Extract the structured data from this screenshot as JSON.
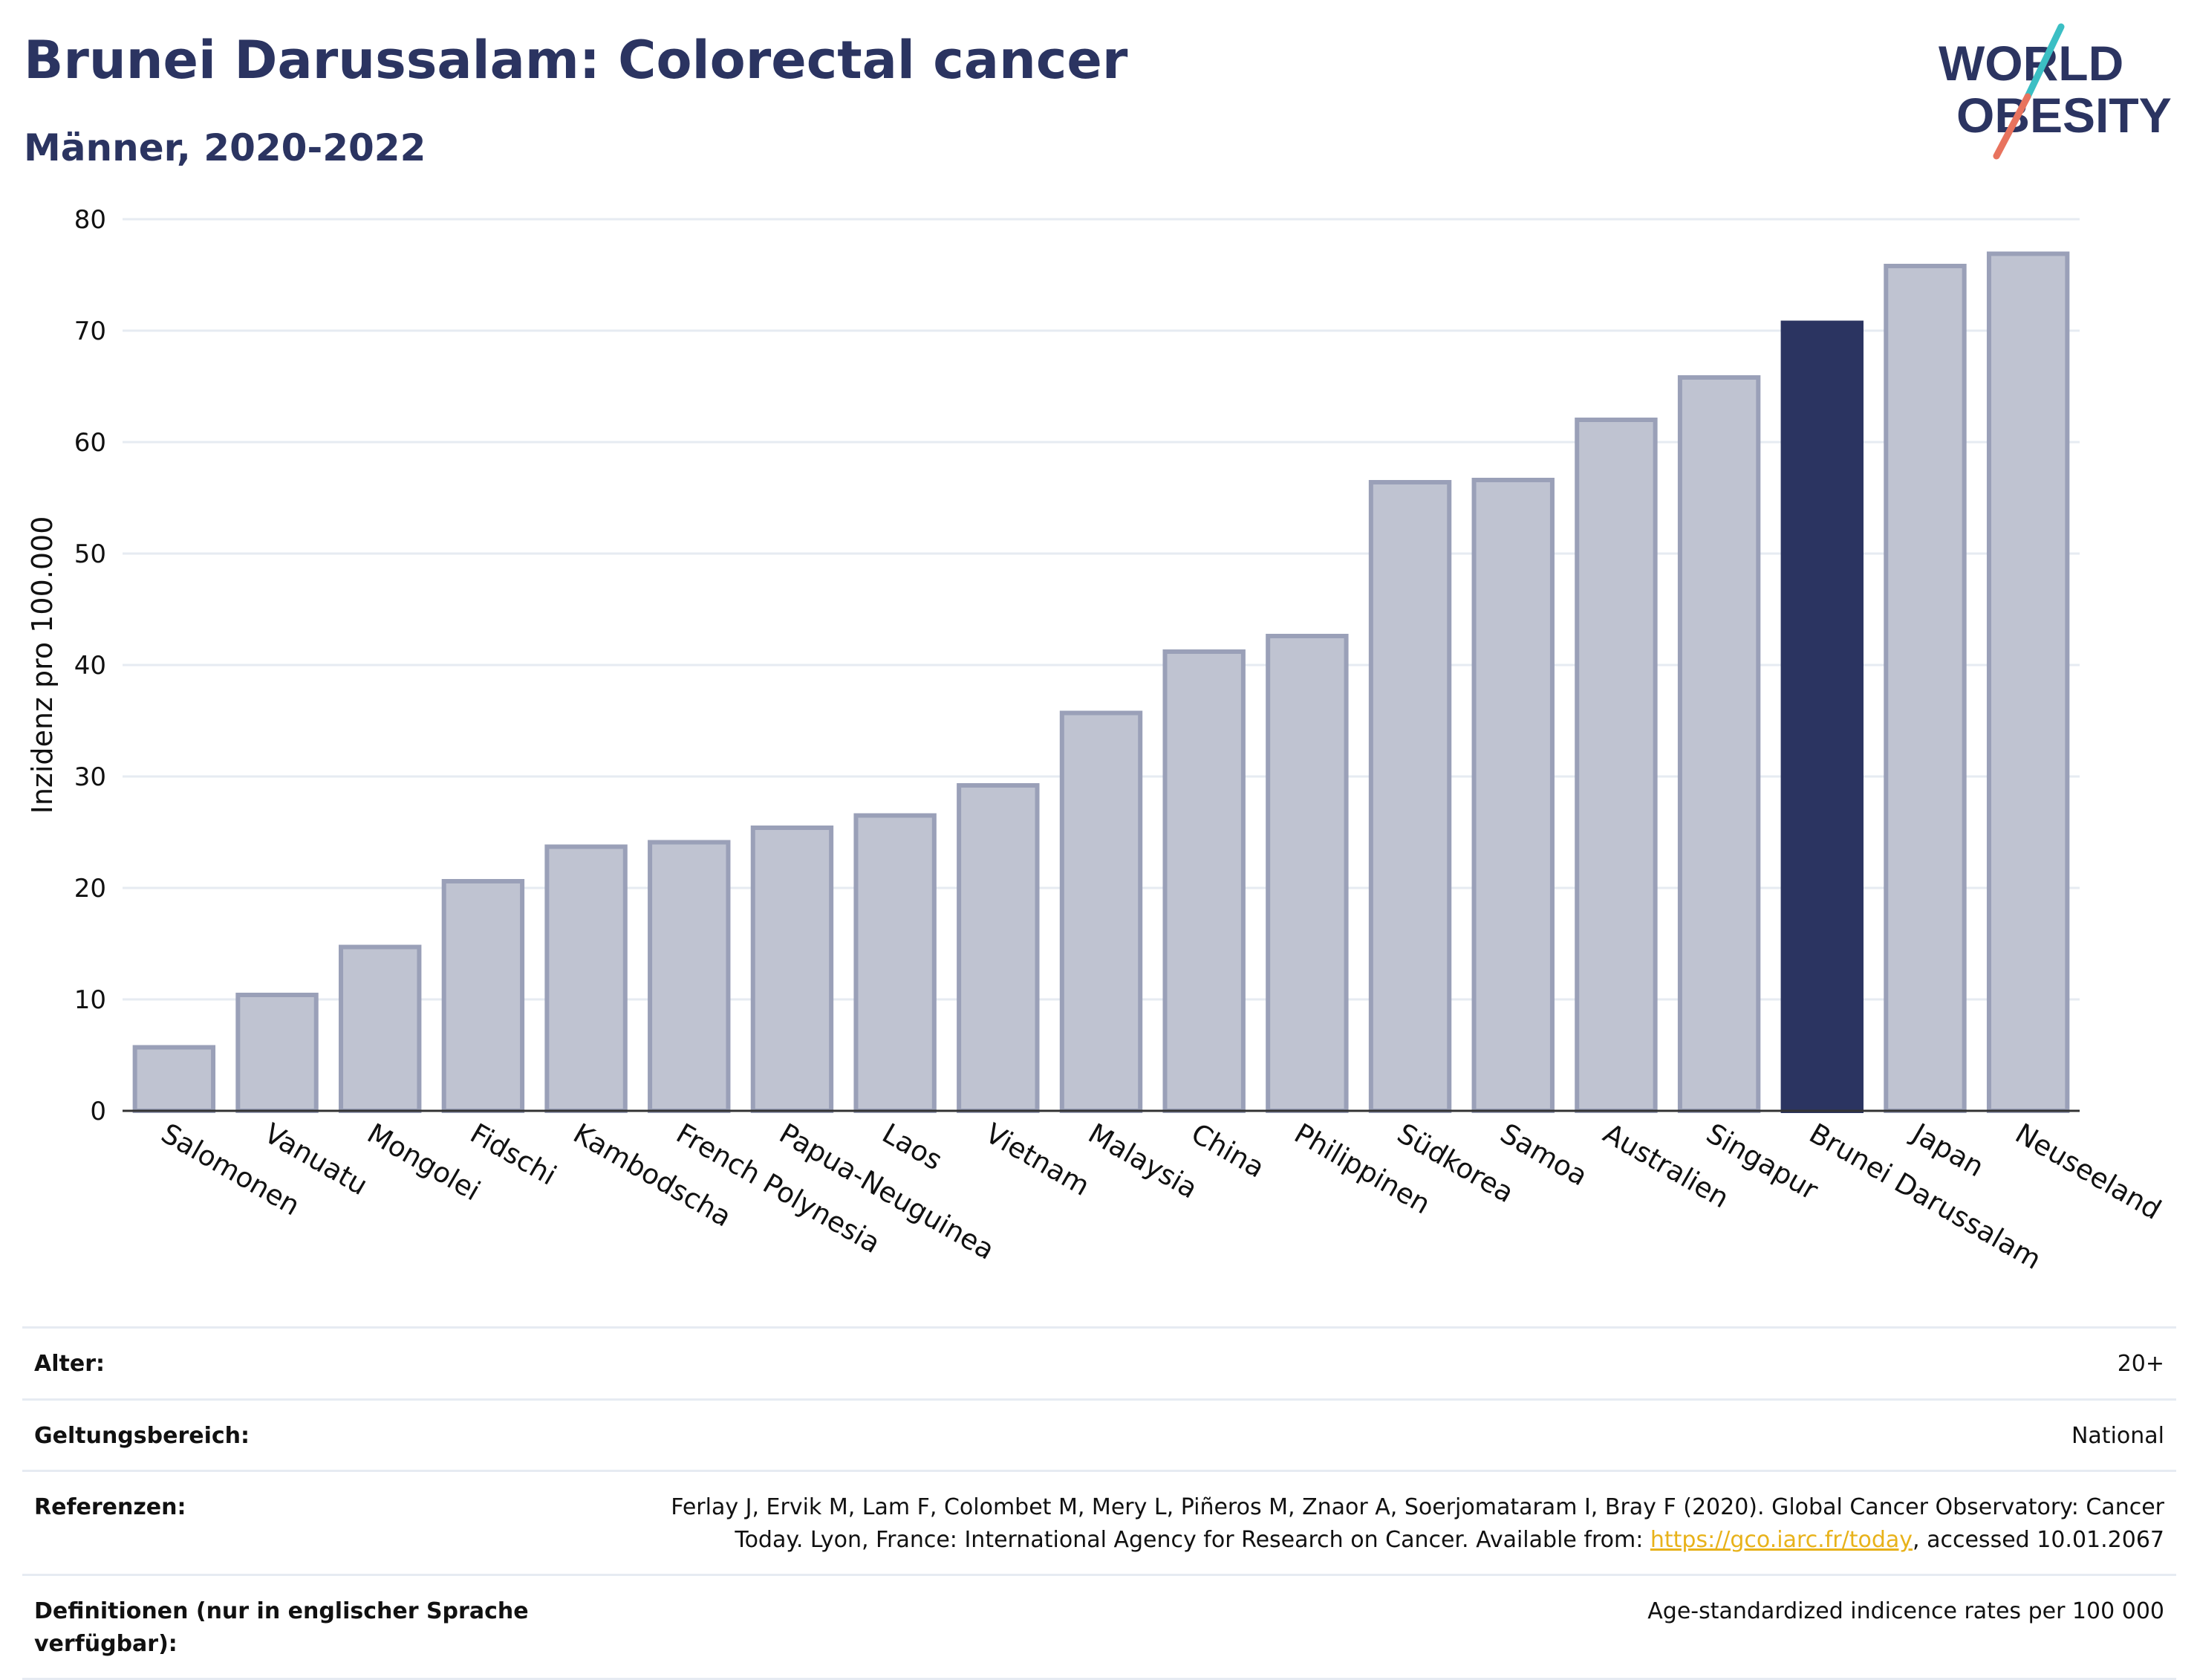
{
  "header": {
    "title": "Brunei Darussalam: Colorectal cancer",
    "subtitle": "Männer, 2020-2022"
  },
  "logo": {
    "line1": "WORLD",
    "line2": "OBESITY",
    "icon": "world-obesity-logo"
  },
  "colors": {
    "title": "#2b3461",
    "bar": "#bfc3d1",
    "bar_border": "#9aa0b8",
    "highlight": "#2b3461",
    "grid": "#e6ebf2",
    "link": "#e8b21a"
  },
  "chart_data": {
    "type": "bar",
    "categories": [
      "Salomonen",
      "Vanuatu",
      "Mongolei",
      "Fidschi",
      "Kambodscha",
      "French Polynesia",
      "Papua-Neuguinea",
      "Laos",
      "Vietnam",
      "Malaysia",
      "China",
      "Philippinen",
      "Südkorea",
      "Samoa",
      "Australien",
      "Singapur",
      "Brunei Darussalam",
      "Japan",
      "Neuseeland"
    ],
    "values": [
      5.7,
      10.4,
      14.7,
      20.6,
      23.7,
      24.1,
      25.4,
      26.5,
      29.2,
      35.7,
      41.2,
      42.6,
      56.4,
      56.6,
      62.0,
      65.8,
      70.7,
      75.8,
      76.9
    ],
    "highlight": "Brunei Darussalam",
    "ylabel": "Inzidenz pro 100.000",
    "xlabel": "",
    "ylim": [
      0,
      80
    ],
    "yticks": [
      0,
      10,
      20,
      30,
      40,
      50,
      60,
      70,
      80
    ],
    "grid": true
  },
  "footer": {
    "rows": [
      {
        "label": "Alter:",
        "value": "20+"
      },
      {
        "label": "Geltungsbereich:",
        "value": "National"
      },
      {
        "label": "Referenzen:",
        "value_before": "Ferlay J, Ervik M, Lam F, Colombet M, Mery L, Piñeros M, Znaor A, Soerjomataram I, Bray F (2020). Global Cancer Observatory: Cancer Today. Lyon, France: International Agency for Research on Cancer. Available from: ",
        "link": "https://gco.iarc.fr/today",
        "value_after": ", accessed 10.01.2067"
      },
      {
        "label": "Definitionen (nur in englischer Sprache verfügbar):",
        "value": "Age-standardized indicence rates per 100 000"
      }
    ]
  }
}
